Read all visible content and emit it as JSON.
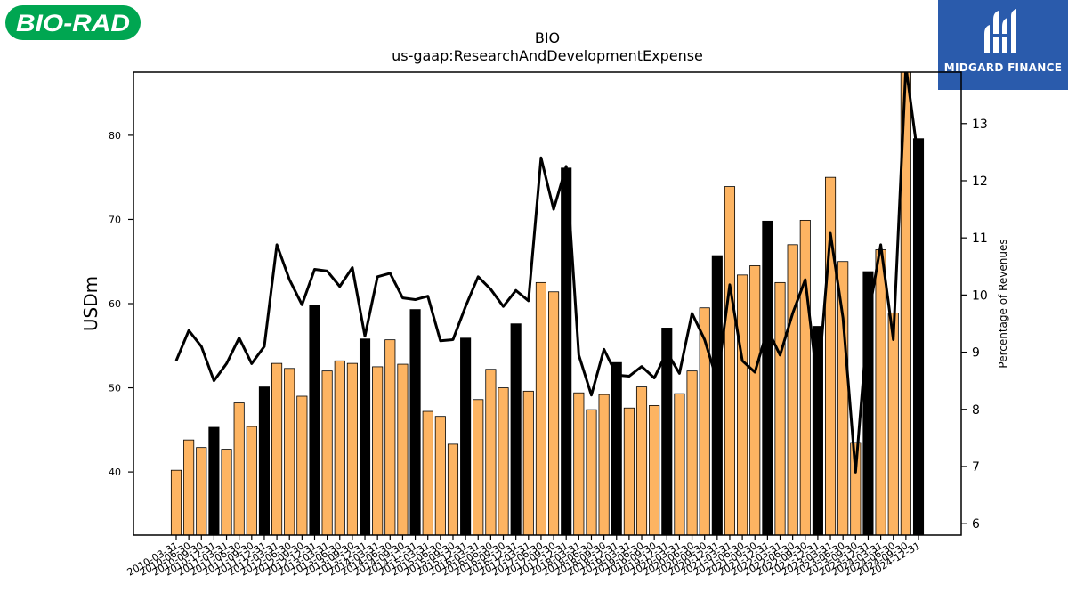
{
  "logos": {
    "left_brand": "BIO-RAD",
    "right_brand": "MIDGARD FINANCE",
    "left_color": "#00a651",
    "right_color": "#2a5bac"
  },
  "chart_data": {
    "type": "bar",
    "title": "BIO",
    "subtitle": "us-gaap:ResearchAndDevelopmentExpense",
    "ylabel": "USDm",
    "y2label": "Percentage of Revenues",
    "ylim": [
      32.5,
      87.5
    ],
    "y2lim": [
      5.8,
      13.9
    ],
    "yticks": [
      40,
      50,
      60,
      70,
      80
    ],
    "y2ticks": [
      6,
      7,
      8,
      9,
      10,
      11,
      12,
      13
    ],
    "bar_colors": {
      "quarter": "#fdb462",
      "annual": "#000000"
    },
    "line_color": "#000000",
    "categories": [
      "2010-03-31",
      "2010-06-30",
      "2010-09-30",
      "2010-12-31",
      "2011-03-31",
      "2011-06-30",
      "2011-09-30",
      "2011-12-31",
      "2012-03-31",
      "2012-06-30",
      "2012-09-30",
      "2012-12-31",
      "2013-03-31",
      "2013-06-30",
      "2013-09-30",
      "2013-12-31",
      "2014-03-31",
      "2014-06-30",
      "2014-09-30",
      "2014-12-31",
      "2015-03-31",
      "2015-06-30",
      "2015-09-30",
      "2015-12-31",
      "2016-03-31",
      "2016-06-30",
      "2016-09-30",
      "2016-12-31",
      "2017-03-31",
      "2017-06-30",
      "2017-09-30",
      "2017-12-31",
      "2018-03-31",
      "2018-06-30",
      "2018-09-30",
      "2018-12-31",
      "2019-03-31",
      "2019-06-30",
      "2019-09-30",
      "2019-12-31",
      "2020-03-31",
      "2020-06-30",
      "2020-09-30",
      "2020-12-31",
      "2021-03-31",
      "2021-06-30",
      "2021-09-30",
      "2021-12-31",
      "2022-03-31",
      "2022-06-30",
      "2022-09-30",
      "2022-12-31",
      "2023-03-31",
      "2023-06-30",
      "2023-09-30",
      "2023-12-31",
      "2024-03-31",
      "2024-06-30",
      "2024-09-30",
      "2024-12-31"
    ],
    "values": [
      40.2,
      43.8,
      42.9,
      45.3,
      42.7,
      48.2,
      45.4,
      50.1,
      52.9,
      52.3,
      49.0,
      59.8,
      52.0,
      53.2,
      52.9,
      55.8,
      52.5,
      55.7,
      52.8,
      59.3,
      47.2,
      46.6,
      43.3,
      55.9,
      48.6,
      52.2,
      50.0,
      57.6,
      49.6,
      62.5,
      61.4,
      76.1,
      49.4,
      47.4,
      49.2,
      53.0,
      47.6,
      50.1,
      47.9,
      57.1,
      49.3,
      52.0,
      59.5,
      65.7,
      73.9,
      63.4,
      64.5,
      69.8,
      62.5,
      67.0,
      69.9,
      57.3,
      75.0,
      65.0,
      43.5,
      63.8,
      66.4,
      58.9,
      88.0,
      79.6
    ],
    "annual": [
      false,
      false,
      false,
      true,
      false,
      false,
      false,
      true,
      false,
      false,
      false,
      true,
      false,
      false,
      false,
      true,
      false,
      false,
      false,
      true,
      false,
      false,
      false,
      true,
      false,
      false,
      false,
      true,
      false,
      false,
      false,
      true,
      false,
      false,
      false,
      true,
      false,
      false,
      false,
      true,
      false,
      false,
      false,
      true,
      false,
      false,
      false,
      true,
      false,
      false,
      false,
      true,
      false,
      false,
      false,
      true,
      false,
      false,
      false,
      true
    ],
    "pct_revenue": [
      8.85,
      9.38,
      9.1,
      8.5,
      8.8,
      9.25,
      8.8,
      9.1,
      10.88,
      10.27,
      9.83,
      10.45,
      10.42,
      10.15,
      10.48,
      9.28,
      10.32,
      10.38,
      9.95,
      9.92,
      9.98,
      9.2,
      9.22,
      9.8,
      10.32,
      10.1,
      9.8,
      10.08,
      9.9,
      12.4,
      11.5,
      12.25,
      8.95,
      8.25,
      9.05,
      8.6,
      8.58,
      8.75,
      8.55,
      9.0,
      8.63,
      9.68,
      9.22,
      8.5,
      10.18,
      8.85,
      8.65,
      9.4,
      8.95,
      9.68,
      10.27,
      8.4,
      11.08,
      9.6,
      6.9,
      9.6,
      10.88,
      9.22,
      14.0,
      12.35
    ]
  }
}
